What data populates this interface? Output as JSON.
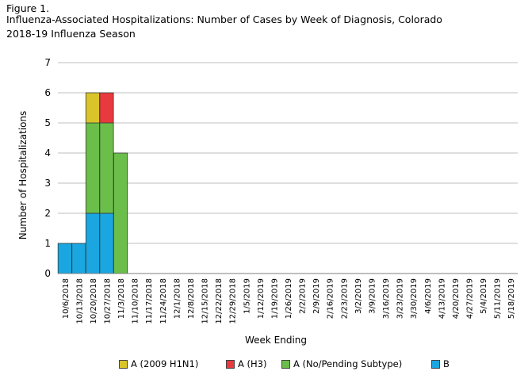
{
  "figure_label": "Figure 1.",
  "title_line1": "Influenza-Associated Hospitalizations: Number of  Cases by Week of Diagnosis, Colorado",
  "title_line2": "2018-19  Influenza Season",
  "chart_data": {
    "type": "bar",
    "stacked": true,
    "title": "Influenza-Associated Hospitalizations: Number of  Cases by Week of Diagnosis, Colorado 2018-19  Influenza Season",
    "xlabel": "Week Ending",
    "ylabel": "Number of Hospitalizations",
    "ylim": [
      0,
      7
    ],
    "yticks": [
      0,
      1,
      2,
      3,
      4,
      5,
      6,
      7
    ],
    "grid": true,
    "legend_position": "bottom",
    "categories": [
      "10/6/2018",
      "10/13/2018",
      "10/20/2018",
      "10/27/2018",
      "11/3/2018",
      "11/10/2018",
      "11/17/2018",
      "11/24/2018",
      "12/1/2018",
      "12/8/2018",
      "12/15/2018",
      "12/22/2018",
      "12/29/2018",
      "1/5/2019",
      "1/12/2019",
      "1/19/2019",
      "1/26/2019",
      "2/2/2019",
      "2/9/2019",
      "2/16/2019",
      "2/23/2019",
      "3/2/2019",
      "3/9/2019",
      "3/16/2019",
      "3/23/2019",
      "3/30/2019",
      "4/6/2019",
      "4/13/2019",
      "4/20/2019",
      "4/27/2019",
      "5/4/2019",
      "5/11/2019",
      "5/18/2019"
    ],
    "series": [
      {
        "name": "B",
        "color": "#1aa6e0",
        "values": [
          1,
          1,
          2,
          2,
          0,
          0,
          0,
          0,
          0,
          0,
          0,
          0,
          0,
          0,
          0,
          0,
          0,
          0,
          0,
          0,
          0,
          0,
          0,
          0,
          0,
          0,
          0,
          0,
          0,
          0,
          0,
          0,
          0
        ]
      },
      {
        "name": "A (No/Pending Subtype)",
        "color": "#6cbe4a",
        "values": [
          0,
          0,
          3,
          3,
          4,
          0,
          0,
          0,
          0,
          0,
          0,
          0,
          0,
          0,
          0,
          0,
          0,
          0,
          0,
          0,
          0,
          0,
          0,
          0,
          0,
          0,
          0,
          0,
          0,
          0,
          0,
          0,
          0
        ]
      },
      {
        "name": "A (H3)",
        "color": "#e8393f",
        "values": [
          0,
          0,
          0,
          1,
          0,
          0,
          0,
          0,
          0,
          0,
          0,
          0,
          0,
          0,
          0,
          0,
          0,
          0,
          0,
          0,
          0,
          0,
          0,
          0,
          0,
          0,
          0,
          0,
          0,
          0,
          0,
          0,
          0
        ]
      },
      {
        "name": "A (2009 H1N1)",
        "color": "#d9c52a",
        "values": [
          0,
          0,
          1,
          0,
          0,
          0,
          0,
          0,
          0,
          0,
          0,
          0,
          0,
          0,
          0,
          0,
          0,
          0,
          0,
          0,
          0,
          0,
          0,
          0,
          0,
          0,
          0,
          0,
          0,
          0,
          0,
          0,
          0
        ]
      }
    ],
    "legend_order": [
      "A (2009 H1N1)",
      "A (H3)",
      "A (No/Pending Subtype)",
      "B"
    ]
  }
}
